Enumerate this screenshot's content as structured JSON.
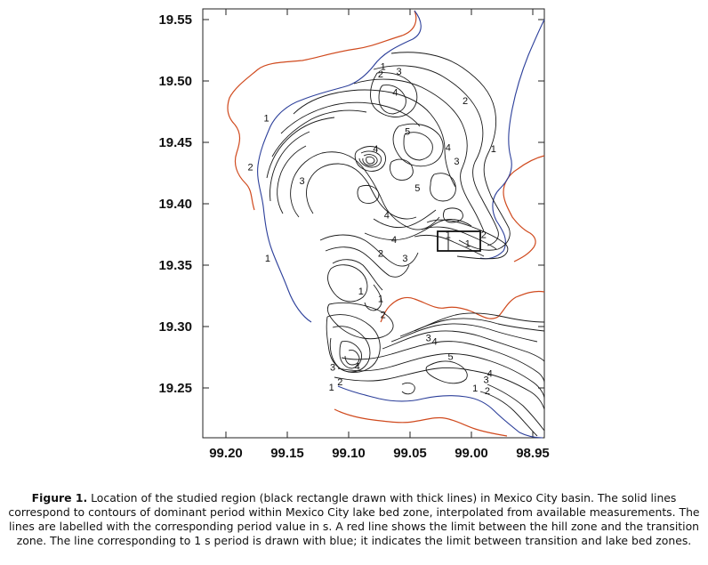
{
  "figure": {
    "y_ticks": [
      "19.55",
      "19.50",
      "19.45",
      "19.40",
      "19.35",
      "19.30",
      "19.25"
    ],
    "x_ticks": [
      "99.20",
      "99.15",
      "99.10",
      "99.05",
      "99.00",
      "98.95"
    ],
    "contour_labels": [
      {
        "text": "1",
        "lon": 99.072,
        "lat": 19.509
      },
      {
        "text": "2",
        "lon": 99.074,
        "lat": 19.503
      },
      {
        "text": "3",
        "lon": 99.059,
        "lat": 19.505
      },
      {
        "text": "4",
        "lon": 99.062,
        "lat": 19.488
      },
      {
        "text": "2",
        "lon": 99.005,
        "lat": 19.481
      },
      {
        "text": "1",
        "lon": 99.167,
        "lat": 19.467
      },
      {
        "text": "5",
        "lon": 99.052,
        "lat": 19.456
      },
      {
        "text": "1",
        "lon": 98.982,
        "lat": 19.442
      },
      {
        "text": "4",
        "lon": 99.078,
        "lat": 19.442
      },
      {
        "text": "4",
        "lon": 99.019,
        "lat": 19.443
      },
      {
        "text": "3",
        "lon": 99.012,
        "lat": 19.432
      },
      {
        "text": "2",
        "lon": 99.18,
        "lat": 19.427
      },
      {
        "text": "3",
        "lon": 99.138,
        "lat": 19.416
      },
      {
        "text": "5",
        "lon": 99.044,
        "lat": 19.41
      },
      {
        "text": "4",
        "lon": 99.069,
        "lat": 19.388
      },
      {
        "text": "2",
        "lon": 98.99,
        "lat": 19.372
      },
      {
        "text": "4",
        "lon": 99.063,
        "lat": 19.368
      },
      {
        "text": "1",
        "lon": 99.019,
        "lat": 19.372
      },
      {
        "text": "1",
        "lon": 99.003,
        "lat": 19.365
      },
      {
        "text": "2",
        "lon": 99.074,
        "lat": 19.357
      },
      {
        "text": "3",
        "lon": 99.054,
        "lat": 19.353
      },
      {
        "text": "1",
        "lon": 99.166,
        "lat": 19.353
      },
      {
        "text": "1",
        "lon": 99.09,
        "lat": 19.326
      },
      {
        "text": "1",
        "lon": 99.074,
        "lat": 19.32
      },
      {
        "text": "2",
        "lon": 99.072,
        "lat": 19.307
      },
      {
        "text": "3",
        "lon": 99.035,
        "lat": 19.288
      },
      {
        "text": "4",
        "lon": 99.03,
        "lat": 19.285
      },
      {
        "text": "5",
        "lon": 99.017,
        "lat": 19.273
      },
      {
        "text": "3",
        "lon": 99.113,
        "lat": 19.264
      },
      {
        "text": "4",
        "lon": 99.093,
        "lat": 19.265
      },
      {
        "text": "4",
        "lon": 98.985,
        "lat": 19.259
      },
      {
        "text": "3",
        "lon": 98.988,
        "lat": 19.254
      },
      {
        "text": "2",
        "lon": 99.107,
        "lat": 19.252
      },
      {
        "text": "1",
        "lon": 99.114,
        "lat": 19.248
      },
      {
        "text": "1",
        "lon": 98.997,
        "lat": 19.247
      },
      {
        "text": "2",
        "lon": 98.987,
        "lat": 19.245
      }
    ]
  },
  "caption": {
    "label": "Figure 1.",
    "text": " Location of the studied region (black rectangle drawn with thick lines) in Mexico City basin. The solid lines correspond to contours of dominant period within Mexico City lake bed zone, interpolated from available measurements. The lines are labelled with the corresponding period value in s. A red line shows the limit between the hill zone and the transition zone. The line corresponding to 1 s period is drawn with blue; it indicates the limit between transition and lake bed zones."
  },
  "colors": {
    "hill_transition_limit": "#d04a1e",
    "one_second_contour": "#2c3f9a",
    "contours": "#1a1a1a"
  }
}
